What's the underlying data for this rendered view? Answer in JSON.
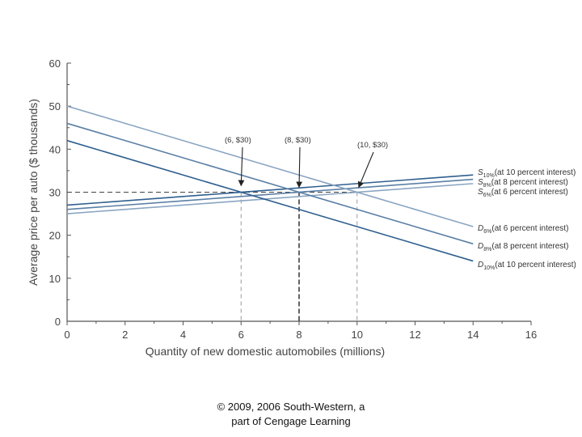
{
  "chart_data": {
    "type": "line",
    "xlabel": "Quantity of new domestic automobiles (millions)",
    "ylabel": "Average price per auto ($ thousands)",
    "xlim": [
      0,
      16
    ],
    "ylim": [
      0,
      60
    ],
    "x_ticks": [
      0,
      2,
      4,
      6,
      8,
      10,
      12,
      14,
      16
    ],
    "y_ticks": [
      0,
      10,
      20,
      30,
      40,
      50,
      60
    ],
    "grid": false,
    "series": [
      {
        "letter": "S",
        "subscript": "10%",
        "suffix": "(at 10 percent interest)",
        "x": [
          0,
          14
        ],
        "y": [
          27,
          34
        ],
        "color": "#2f5f8e"
      },
      {
        "letter": "S",
        "subscript": "8%",
        "suffix": "(at 8 percent interest)",
        "x": [
          0,
          14
        ],
        "y": [
          26,
          33
        ],
        "color": "#5a7fa6"
      },
      {
        "letter": "S",
        "subscript": "6%",
        "suffix": "(at 6 percent interest)",
        "x": [
          0,
          14
        ],
        "y": [
          25,
          32
        ],
        "color": "#8aa5c2"
      },
      {
        "letter": "D",
        "subscript": "6%",
        "suffix": "(at 6 percent interest)",
        "x": [
          0,
          14
        ],
        "y": [
          50,
          22
        ],
        "color": "#8aa5c2"
      },
      {
        "letter": "D",
        "subscript": "8%",
        "suffix": "(at 8 percent interest)",
        "x": [
          0,
          14
        ],
        "y": [
          46,
          18
        ],
        "color": "#5a7fa6"
      },
      {
        "letter": "D",
        "subscript": "10%",
        "suffix": "(at 10 percent interest)",
        "x": [
          0,
          14
        ],
        "y": [
          42,
          14
        ],
        "color": "#2f5f8e"
      }
    ],
    "reference_line": {
      "y": 30,
      "x_end": 10
    },
    "equilibria": [
      {
        "label": "(6, $30)",
        "x": 6,
        "y": 30
      },
      {
        "label": "(8, $30)",
        "x": 8,
        "y": 30
      },
      {
        "label": "(10, $30)",
        "x": 10,
        "y": 30
      }
    ]
  },
  "footer": {
    "line1": "© 2009, 2006 South-Western, a",
    "line2": "part of Cengage Learning"
  }
}
